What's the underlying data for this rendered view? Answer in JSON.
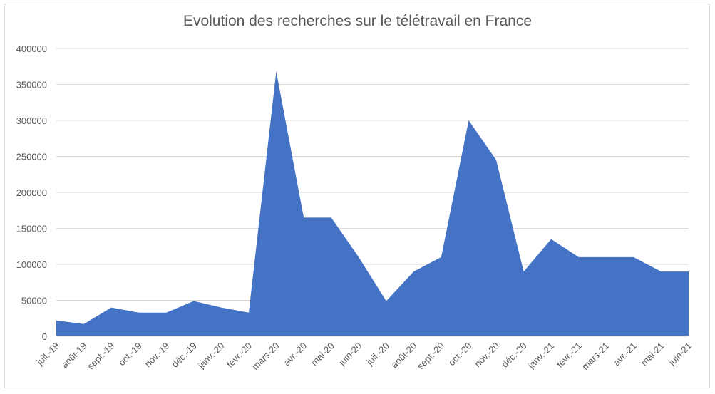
{
  "chart_data": {
    "type": "area",
    "title": "Evolution des recherches sur le télétravail en France",
    "xlabel": "",
    "ylabel": "",
    "ylim": [
      0,
      400000
    ],
    "yticks": [
      "0",
      "50000",
      "100000",
      "150000",
      "200000",
      "250000",
      "300000",
      "350000",
      "400000"
    ],
    "grid": true,
    "legend": "none",
    "color": "#4472c4",
    "categories": [
      "juil.-19",
      "août-19",
      "sept.-19",
      "oct.-19",
      "nov.-19",
      "déc.-19",
      "janv.-20",
      "févr.-20",
      "mars-20",
      "avr.-20",
      "mai-20",
      "juin-20",
      "juil.-20",
      "août-20",
      "sept.-20",
      "oct.-20",
      "nov.-20",
      "déc.-20",
      "janv.-21",
      "févr.-21",
      "mars-21",
      "avr.-21",
      "mai-21",
      "juin-21"
    ],
    "values": [
      22000,
      17000,
      40000,
      33000,
      33000,
      49000,
      40000,
      33000,
      368000,
      165000,
      165000,
      110000,
      49000,
      90000,
      110000,
      300000,
      245000,
      90000,
      135000,
      110000,
      110000,
      110000,
      90000,
      90000
    ]
  }
}
